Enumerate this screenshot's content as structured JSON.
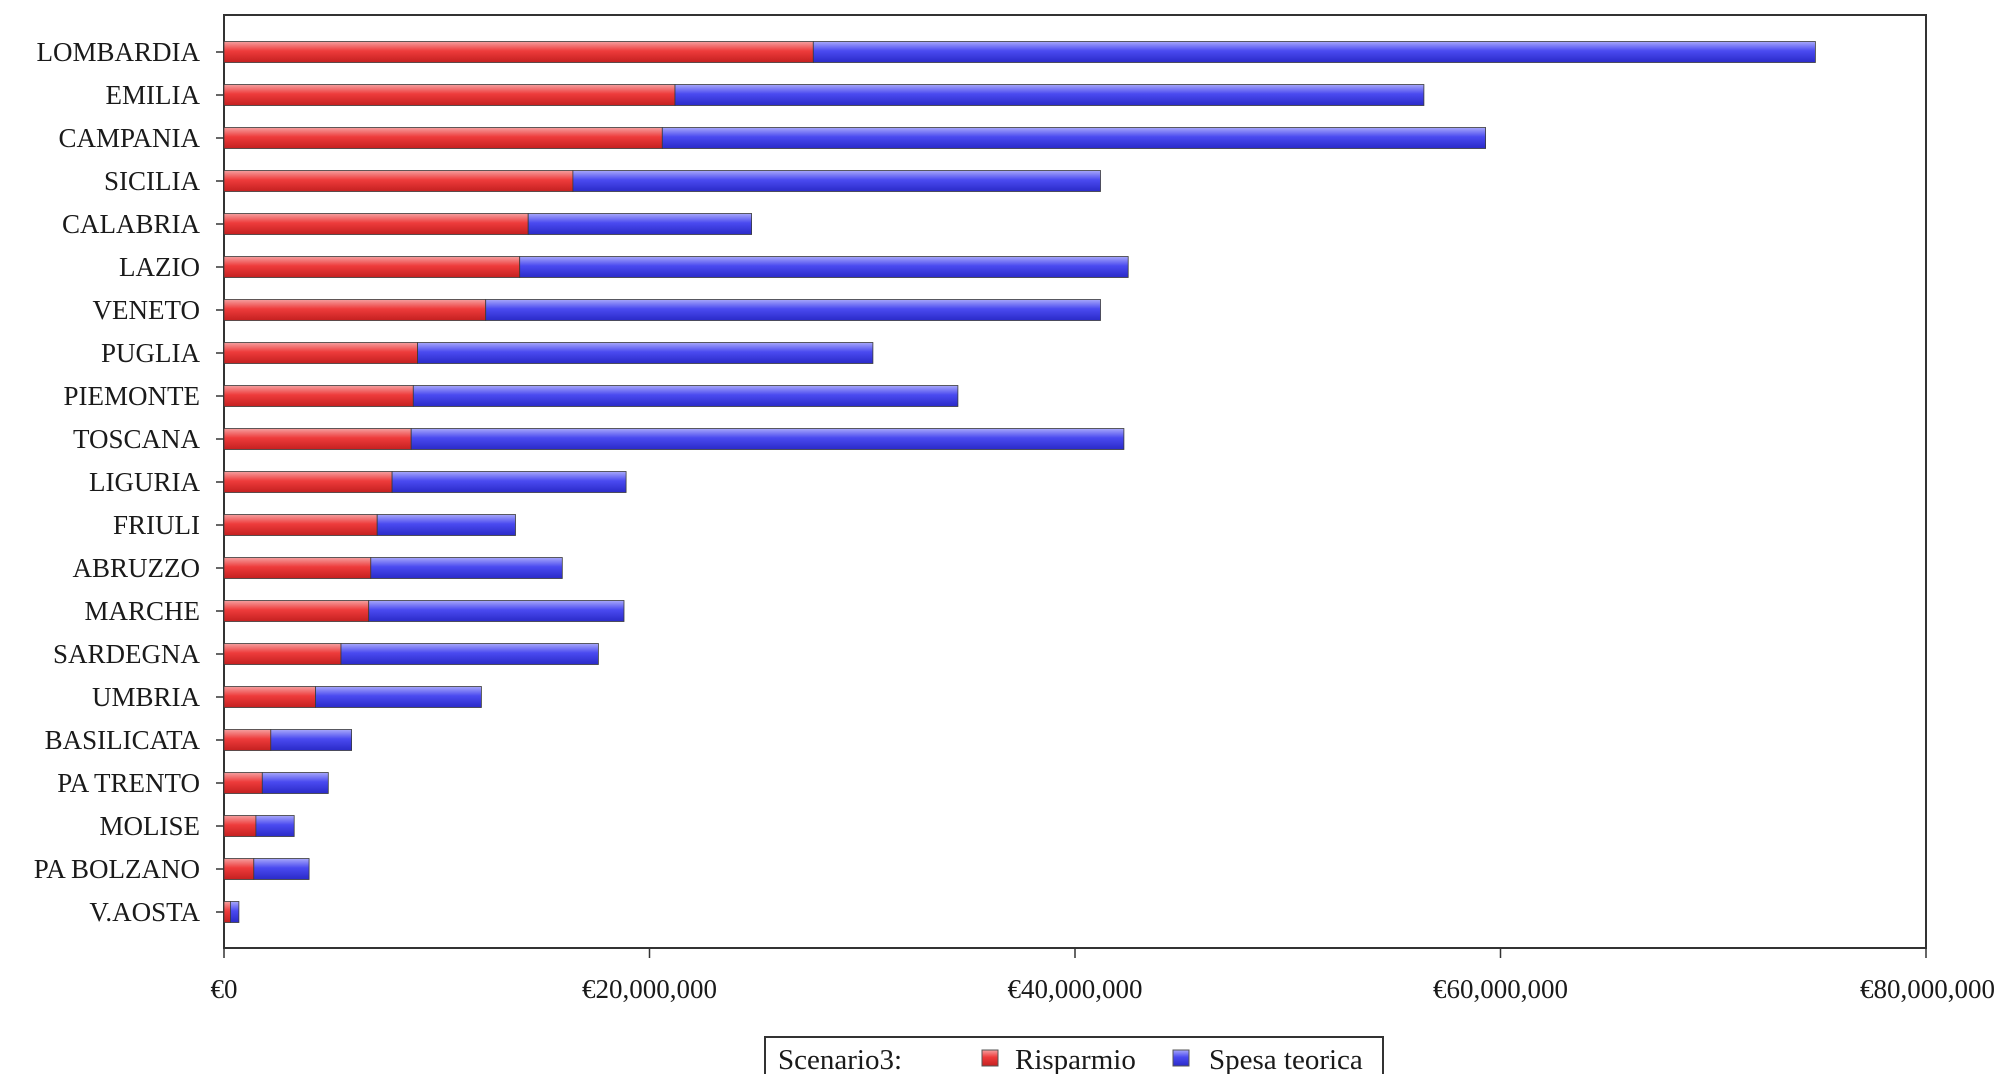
{
  "chart_data": {
    "type": "bar",
    "orientation": "horizontal",
    "stacked": true,
    "categories": [
      "LOMBARDIA",
      "EMILIA",
      "CAMPANIA",
      "SICILIA",
      "CALABRIA",
      "LAZIO",
      "VENETO",
      "PUGLIA",
      "PIEMONTE",
      "TOSCANA",
      "LIGURIA",
      "FRIULI",
      "ABRUZZO",
      "MARCHE",
      "SARDEGNA",
      "UMBRIA",
      "BASILICATA",
      "PA TRENTO",
      "MOLISE",
      "PA BOLZANO",
      "V.AOSTA"
    ],
    "series": [
      {
        "name": "Risparmio",
        "color": "#ee3b3b",
        "values": [
          27700000,
          21200000,
          20600000,
          16400000,
          14300000,
          13900000,
          12300000,
          9100000,
          8900000,
          8800000,
          7900000,
          7200000,
          6900000,
          6800000,
          5500000,
          4300000,
          2200000,
          1800000,
          1500000,
          1400000,
          300000
        ]
      },
      {
        "name": "Spesa teorica",
        "color": "#4a4af0",
        "values": [
          47100000,
          35200000,
          38700000,
          24800000,
          10500000,
          28600000,
          28900000,
          21400000,
          25600000,
          33500000,
          11000000,
          6500000,
          9000000,
          12000000,
          12100000,
          7800000,
          3800000,
          3100000,
          1800000,
          2600000,
          400000
        ]
      }
    ],
    "xlim": [
      0,
      80000000
    ],
    "xticks": [
      0,
      20000000,
      40000000,
      60000000,
      80000000
    ],
    "xtick_labels": [
      "€0",
      "€20,000,000",
      "€40,000,000",
      "€60,000,000",
      "€80,000,000"
    ],
    "legend": {
      "title": "Scenario3:",
      "position": "bottom-center",
      "entries": [
        "Risparmio",
        "Spesa teorica"
      ]
    },
    "grid": false
  }
}
